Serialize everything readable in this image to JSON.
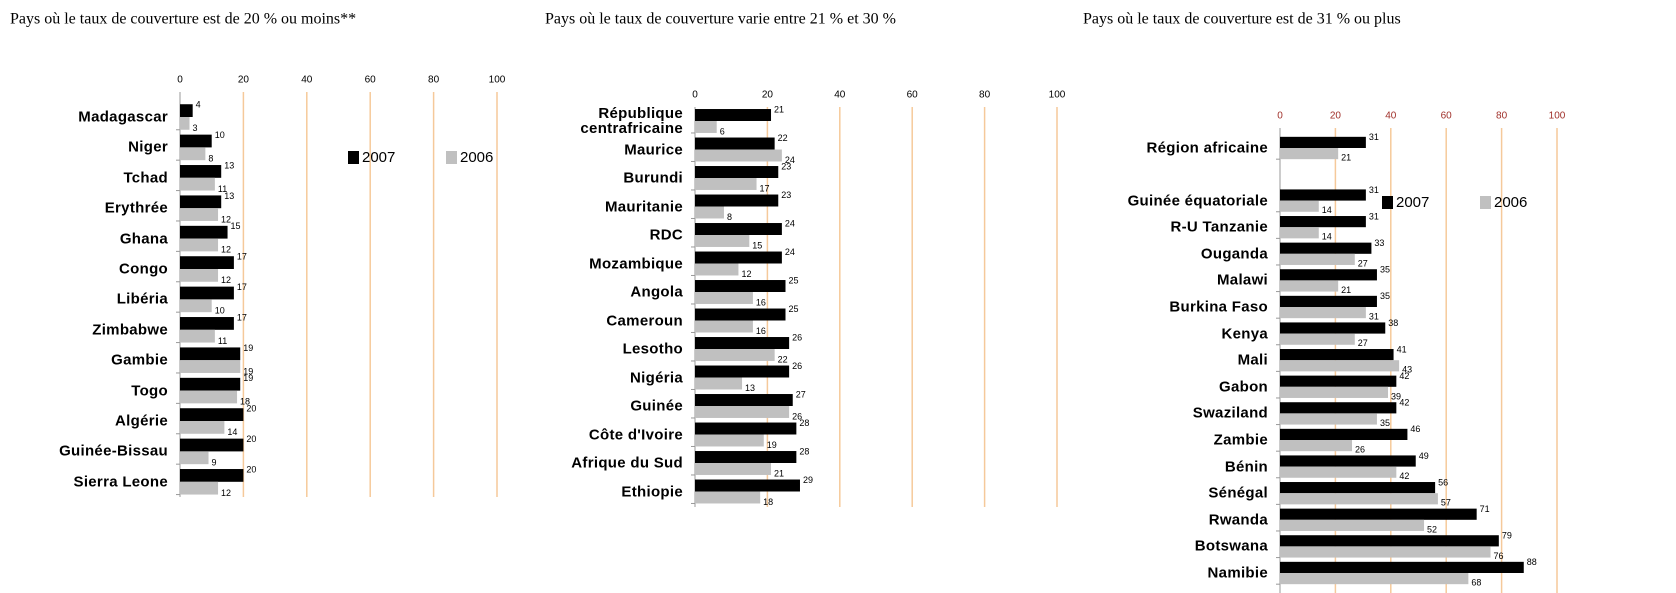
{
  "chart_data": [
    {
      "type": "bar",
      "orientation": "horizontal",
      "title": "Pays où le taux de couverture est de 20 % ou moins**",
      "categories": [
        "Madagascar",
        "Niger",
        "Tchad",
        "Erythrée",
        "Ghana",
        "Congo",
        "Libéria",
        "Zimbabwe",
        "Gambie",
        "Togo",
        "Algérie",
        "Guinée-Bissau",
        "Sierra Leone"
      ],
      "series": [
        {
          "name": "2007",
          "color": "#000000",
          "values": [
            4,
            10,
            13,
            13,
            15,
            17,
            17,
            17,
            19,
            19,
            20,
            20,
            20
          ]
        },
        {
          "name": "2006",
          "color": "#c0c0c0",
          "values": [
            3,
            8,
            11,
            12,
            12,
            12,
            10,
            11,
            19,
            18,
            14,
            9,
            12
          ]
        }
      ],
      "xlim": [
        0,
        100
      ],
      "xticks": [
        0,
        20,
        40,
        60,
        80,
        100
      ],
      "grid": true,
      "grid_color": "#f5c99a",
      "tick_color": "#000000",
      "legend": "upper right"
    },
    {
      "type": "bar",
      "orientation": "horizontal",
      "title": "Pays où le taux de couverture varie entre 21 % et 30 %",
      "categories": [
        "République centrafricaine",
        "Maurice",
        "Burundi",
        "Mauritanie",
        "RDC",
        "Mozambique",
        "Angola",
        "Cameroun",
        "Lesotho",
        "Nigéria",
        "Guinée",
        "Côte d'Ivoire",
        "Afrique du Sud",
        "Ethiopie"
      ],
      "series": [
        {
          "name": "2007",
          "color": "#000000",
          "values": [
            21,
            22,
            23,
            23,
            24,
            24,
            25,
            25,
            26,
            26,
            27,
            28,
            28,
            29
          ]
        },
        {
          "name": "2006",
          "color": "#c0c0c0",
          "values": [
            6,
            24,
            17,
            8,
            15,
            12,
            16,
            16,
            22,
            13,
            26,
            19,
            21,
            18
          ]
        }
      ],
      "xlim": [
        0,
        100
      ],
      "xticks": [
        0,
        20,
        40,
        60,
        80,
        100
      ],
      "grid": true,
      "grid_color": "#f5c99a",
      "tick_color": "#000000"
    },
    {
      "type": "bar",
      "orientation": "horizontal",
      "title": "Pays où le taux de couverture est de 31 % ou plus",
      "categories": [
        "Région africaine",
        "Guinée équatoriale",
        "R-U Tanzanie",
        "Ouganda",
        "Malawi",
        "Burkina Faso",
        "Kenya",
        "Mali",
        "Gabon",
        "Swaziland",
        "Zambie",
        "Bénin",
        "Sénégal",
        "Rwanda",
        "Botswana",
        "Namibie"
      ],
      "series": [
        {
          "name": "2007",
          "color": "#000000",
          "values": [
            31,
            31,
            31,
            33,
            35,
            35,
            38,
            41,
            42,
            42,
            46,
            49,
            56,
            71,
            79,
            88
          ]
        },
        {
          "name": "2006",
          "color": "#c0c0c0",
          "values": [
            21,
            14,
            14,
            27,
            21,
            31,
            27,
            43,
            39,
            35,
            26,
            42,
            57,
            52,
            76,
            68
          ]
        }
      ],
      "xlim": [
        0,
        100
      ],
      "xticks": [
        0,
        20,
        40,
        60,
        80,
        100
      ],
      "grid": true,
      "grid_color": "#f5c99a",
      "tick_color": "#a0302a",
      "legend": "upper right"
    }
  ]
}
